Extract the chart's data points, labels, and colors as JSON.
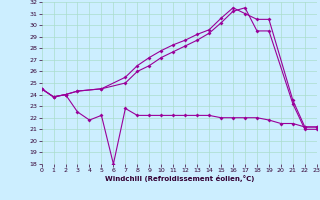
{
  "xlabel": "Windchill (Refroidissement éolien,°C)",
  "bg_color": "#cceeff",
  "line_color": "#990099",
  "grid_color": "#aaddcc",
  "xmin": 0,
  "xmax": 23,
  "ymin": 18,
  "ymax": 32,
  "line1_x": [
    0,
    1,
    2,
    3,
    5,
    7,
    8,
    9,
    10,
    11,
    12,
    13,
    14,
    15,
    16,
    17,
    18,
    19,
    21,
    22,
    23
  ],
  "line1_y": [
    24.5,
    23.8,
    24.0,
    24.3,
    24.5,
    25.5,
    26.5,
    27.2,
    27.8,
    28.3,
    28.7,
    29.2,
    29.6,
    30.6,
    31.5,
    31.0,
    30.5,
    30.5,
    23.5,
    21.2,
    21.2
  ],
  "line2_x": [
    0,
    1,
    2,
    3,
    5,
    7,
    8,
    9,
    10,
    11,
    12,
    13,
    14,
    15,
    16,
    17,
    18,
    19,
    21,
    22,
    23
  ],
  "line2_y": [
    24.5,
    23.8,
    24.0,
    24.3,
    24.5,
    25.0,
    26.0,
    26.5,
    27.2,
    27.7,
    28.2,
    28.7,
    29.3,
    30.2,
    31.2,
    31.5,
    29.5,
    29.5,
    23.2,
    21.0,
    21.0
  ],
  "line3_x": [
    0,
    1,
    2,
    3,
    4,
    5,
    6,
    7,
    8,
    9,
    10,
    11,
    12,
    13,
    14,
    15,
    16,
    17,
    18,
    19,
    20,
    21,
    22,
    23
  ],
  "line3_y": [
    24.5,
    23.8,
    24.0,
    22.5,
    21.8,
    22.2,
    18.0,
    22.8,
    22.2,
    22.2,
    22.2,
    22.2,
    22.2,
    22.2,
    22.2,
    22.0,
    22.0,
    22.0,
    22.0,
    21.8,
    21.5,
    21.5,
    21.2,
    21.2
  ]
}
